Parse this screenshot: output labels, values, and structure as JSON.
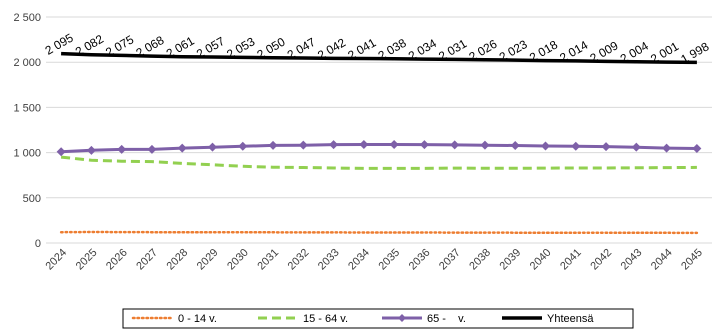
{
  "chart_data": {
    "type": "line",
    "title": "",
    "xlabel": "",
    "ylabel": "",
    "categories": [
      "2024",
      "2025",
      "2026",
      "2027",
      "2028",
      "2029",
      "2030",
      "2031",
      "2032",
      "2033",
      "2034",
      "2035",
      "2036",
      "2037",
      "2038",
      "2039",
      "2040",
      "2041",
      "2042",
      "2043",
      "2044",
      "2045"
    ],
    "ylim": [
      0,
      2500
    ],
    "yticks": [
      0,
      500,
      1000,
      1500,
      2000,
      2500
    ],
    "ytick_labels": [
      "0",
      "500",
      "1 000",
      "1 500",
      "2 000",
      "2 500"
    ],
    "grid": "horizontal",
    "legend_position": "bottom",
    "series": [
      {
        "name": "0 - 14 v.",
        "color": "#ED7D31",
        "style": "dotted",
        "values": [
          120,
          122,
          121,
          120,
          119,
          119,
          118,
          118,
          117,
          117,
          116,
          116,
          116,
          115,
          115,
          114,
          114,
          114,
          113,
          113,
          113,
          112
        ]
      },
      {
        "name": "15 - 64 v.",
        "color": "#92D050",
        "style": "dashed",
        "values": [
          950,
          915,
          905,
          900,
          880,
          865,
          848,
          838,
          835,
          830,
          825,
          825,
          825,
          828,
          826,
          826,
          828,
          830,
          830,
          832,
          834,
          836
        ]
      },
      {
        "name": "65 -    v.",
        "color": "#7E60A8",
        "style": "solid-markers",
        "values": [
          1010,
          1025,
          1035,
          1035,
          1050,
          1060,
          1070,
          1080,
          1082,
          1088,
          1090,
          1090,
          1088,
          1085,
          1082,
          1078,
          1073,
          1070,
          1066,
          1060,
          1050,
          1045
        ]
      },
      {
        "name": "Yhteensä",
        "color": "#000000",
        "style": "solid",
        "values": [
          2095,
          2082,
          2075,
          2068,
          2061,
          2057,
          2053,
          2050,
          2047,
          2042,
          2041,
          2038,
          2034,
          2031,
          2026,
          2023,
          2018,
          2014,
          2009,
          2004,
          2001,
          1998
        ]
      }
    ],
    "data_labels": [
      "2 095",
      "2 082",
      "2 075",
      "2 068",
      "2 061",
      "2 057",
      "2 053",
      "2 050",
      "2 047",
      "2 042",
      "2 041",
      "2 038",
      "2 034",
      "2 031",
      "2 026",
      "2 023",
      "2 018",
      "2 014",
      "2 009",
      "2 004",
      "2 001",
      "1 998"
    ]
  }
}
